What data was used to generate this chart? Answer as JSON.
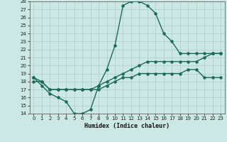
{
  "xlabel": "Humidex (Indice chaleur)",
  "background_color": "#cce8e4",
  "grid_color": "#aacccc",
  "line_color": "#1a6b5a",
  "xlim": [
    -0.5,
    23.5
  ],
  "ylim": [
    14,
    28
  ],
  "xticks": [
    0,
    1,
    2,
    3,
    4,
    5,
    6,
    7,
    8,
    9,
    10,
    11,
    12,
    13,
    14,
    15,
    16,
    17,
    18,
    19,
    20,
    21,
    22,
    23
  ],
  "yticks": [
    14,
    15,
    16,
    17,
    18,
    19,
    20,
    21,
    22,
    23,
    24,
    25,
    26,
    27,
    28
  ],
  "line1_x": [
    0,
    1,
    2,
    3,
    4,
    5,
    6,
    7,
    8,
    9,
    10,
    11,
    12,
    13,
    14,
    15,
    16,
    17,
    18,
    19,
    20,
    21,
    22,
    23
  ],
  "line1_y": [
    18.5,
    17.5,
    16.5,
    16,
    15.5,
    14,
    14,
    14.5,
    17.5,
    19.5,
    22.5,
    27.5,
    28,
    28,
    27.5,
    26.5,
    24,
    23,
    21.5,
    21.5,
    21.5,
    21.5,
    21.5,
    21.5
  ],
  "line2_x": [
    0,
    1,
    2,
    3,
    4,
    5,
    6,
    7,
    8,
    9,
    10,
    11,
    12,
    13,
    14,
    15,
    16,
    17,
    18,
    19,
    20,
    21,
    22,
    23
  ],
  "line2_y": [
    18.5,
    18,
    17,
    17,
    17,
    17,
    17,
    17,
    17.5,
    18,
    18.5,
    19,
    19.5,
    20,
    20.5,
    20.5,
    20.5,
    20.5,
    20.5,
    20.5,
    20.5,
    21,
    21.5,
    21.5
  ],
  "line3_x": [
    0,
    1,
    2,
    3,
    4,
    5,
    6,
    7,
    8,
    9,
    10,
    11,
    12,
    13,
    14,
    15,
    16,
    17,
    18,
    19,
    20,
    21,
    22,
    23
  ],
  "line3_y": [
    18,
    18,
    17,
    17,
    17,
    17,
    17,
    17,
    17,
    17.5,
    18,
    18.5,
    18.5,
    19,
    19,
    19,
    19,
    19,
    19,
    19.5,
    19.5,
    18.5,
    18.5,
    18.5
  ]
}
